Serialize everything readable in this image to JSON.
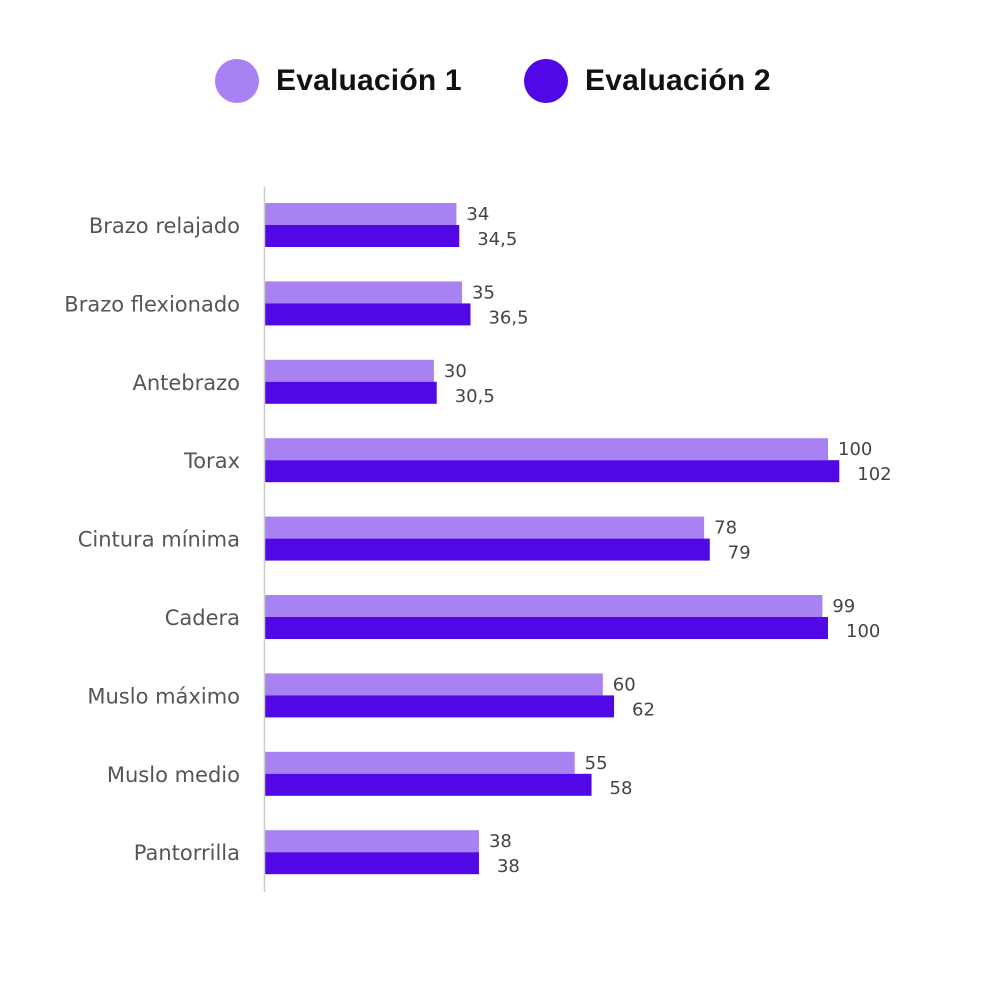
{
  "colors": {
    "series_1": "#a882f2",
    "series_2": "#5207e6",
    "axis": "#cccccc",
    "category_text": "#555555",
    "value_text": "#444444"
  },
  "chart_data": {
    "type": "bar",
    "orientation": "horizontal",
    "title": "",
    "xlabel": "",
    "ylabel": "",
    "xlim": [
      0,
      102
    ],
    "grid": false,
    "legend": "top",
    "categories": [
      "Brazo relajado",
      "Brazo flexionado",
      "Antebrazo",
      "Torax",
      "Cintura mínima",
      "Cadera",
      "Muslo máximo",
      "Muslo medio",
      "Pantorrilla"
    ],
    "series": [
      {
        "name": "Evaluación 1",
        "color": "#a882f2",
        "values": [
          34,
          35,
          30,
          100,
          78,
          99,
          60,
          55,
          38
        ],
        "labels": [
          "34",
          "35",
          "30",
          "100",
          "78",
          "99",
          "60",
          "55",
          "38"
        ]
      },
      {
        "name": "Evaluación 2",
        "color": "#5207e6",
        "values": [
          34.5,
          36.5,
          30.5,
          102,
          79,
          100,
          62,
          58,
          38
        ],
        "labels": [
          "34,5",
          "36,5",
          "30,5",
          "102",
          "79",
          "100",
          "62",
          "58",
          "38"
        ]
      }
    ]
  }
}
